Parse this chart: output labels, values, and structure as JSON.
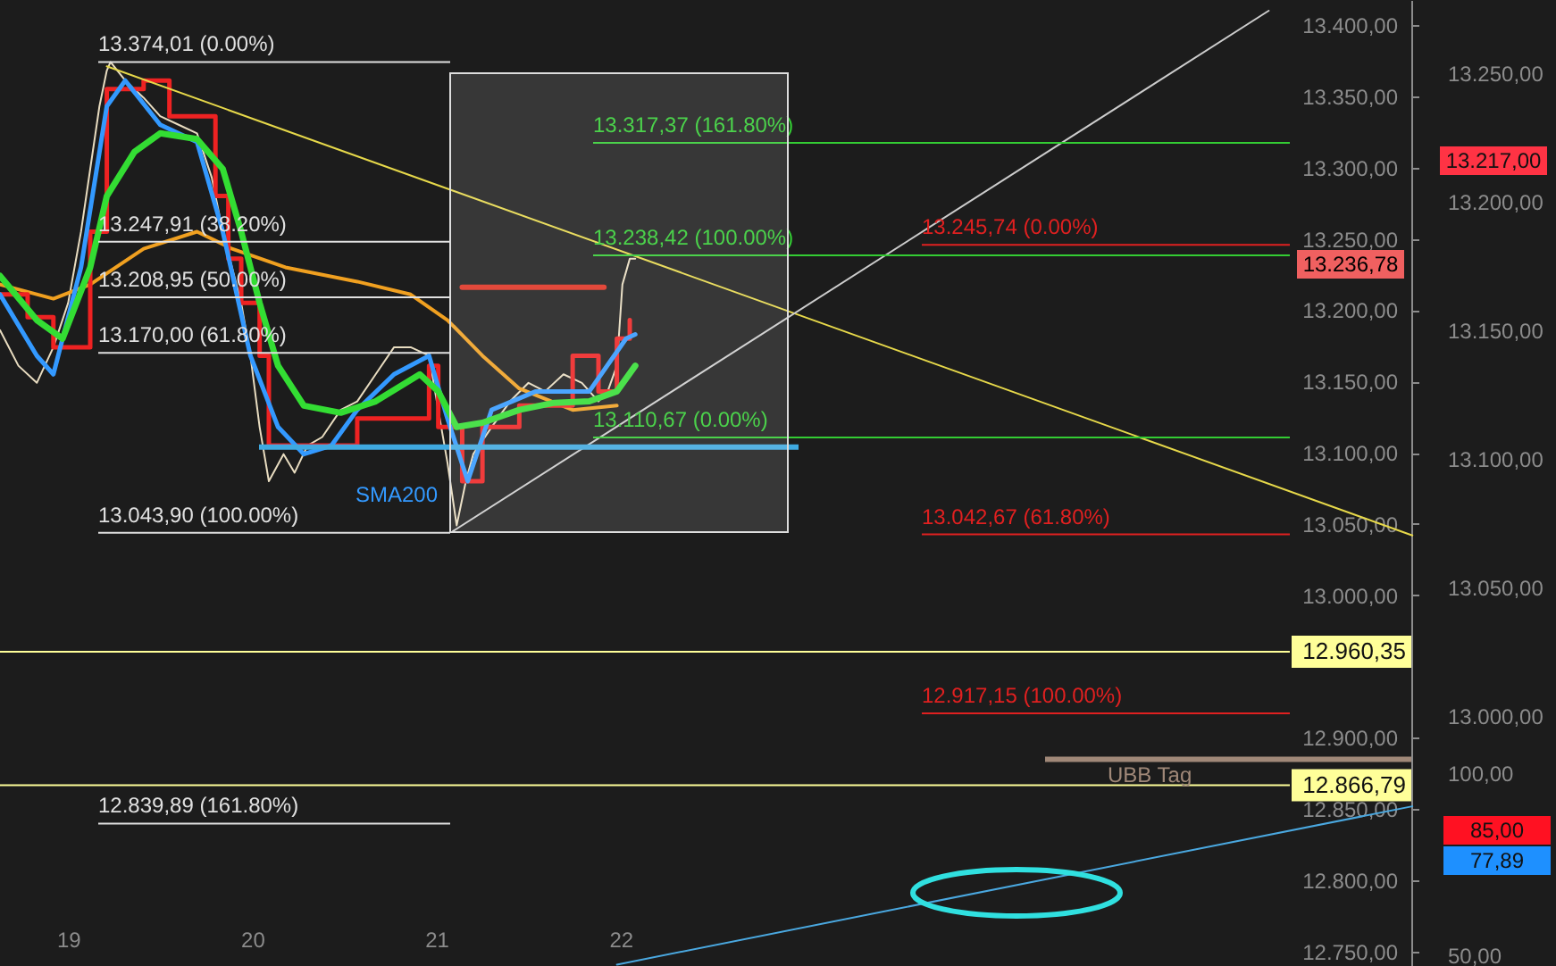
{
  "chart_data": {
    "type": "line",
    "grid": false,
    "xlim": [
      18.63,
      27.08
    ],
    "xticks": [
      19,
      20,
      21,
      22
    ],
    "ylim": [
      12740,
      13417.5
    ],
    "yticks": [
      {
        "value": 12750,
        "label": "12.750,00"
      },
      {
        "value": 12800,
        "label": "12.800,00"
      },
      {
        "value": 12850,
        "label": "12.850,00"
      },
      {
        "value": 12900,
        "label": "12.900,00"
      },
      {
        "value": 13000,
        "label": "13.000,00"
      },
      {
        "value": 13050,
        "label": "13.050,00"
      },
      {
        "value": 13100,
        "label": "13.100,00"
      },
      {
        "value": 13150,
        "label": "13.150,00"
      },
      {
        "value": 13200,
        "label": "13.200,00"
      },
      {
        "value": 13250,
        "label": "13.250,00"
      },
      {
        "value": 13300,
        "label": "13.300,00"
      },
      {
        "value": 13350,
        "label": "13.350,00"
      },
      {
        "value": 13400,
        "label": "13.400,00"
      }
    ],
    "y2lim": [
      12903,
      13278.5
    ],
    "y2ticks": [
      {
        "value": 13000,
        "label": "13.000,00"
      },
      {
        "value": 13050,
        "label": "13.050,00"
      },
      {
        "value": 13100,
        "label": "13.100,00"
      },
      {
        "value": 13150,
        "label": "13.150,00"
      },
      {
        "value": 13200,
        "label": "13.200,00"
      },
      {
        "value": 13250,
        "label": "13.250,00"
      }
    ],
    "series": [
      {
        "color": "#e8dcc0",
        "x": [
          18.63,
          18.73,
          18.83,
          18.92,
          19.0,
          19.07,
          19.12,
          19.17,
          19.21,
          19.23,
          19.31,
          19.41,
          19.5,
          19.6,
          19.7,
          19.78,
          19.84,
          19.89,
          19.94,
          19.99,
          20.04,
          20.09,
          20.17,
          20.23,
          20.3,
          20.38,
          20.48,
          20.57,
          20.67,
          20.77,
          20.86,
          20.96,
          21.01,
          21.06,
          21.11,
          21.16,
          21.2,
          21.3,
          21.4,
          21.5,
          21.59,
          21.69,
          21.79,
          21.88,
          21.93,
          21.98,
          22.01,
          22.05,
          22.08
        ],
        "values": [
          13186,
          13161,
          13149,
          13174,
          13205,
          13255,
          13299,
          13343,
          13368,
          13374,
          13361,
          13349,
          13336,
          13330,
          13324,
          13293,
          13255,
          13230,
          13205,
          13168,
          13118,
          13080,
          13099,
          13086,
          13105,
          13111,
          13130,
          13136,
          13155,
          13174,
          13174,
          13168,
          13130,
          13093,
          13049,
          13080,
          13099,
          13118,
          13136,
          13149,
          13143,
          13155,
          13149,
          13136,
          13143,
          13161,
          13218,
          13236,
          13236
        ]
      },
      {
        "color": "#f0a020",
        "x": [
          18.63,
          18.92,
          19.12,
          19.41,
          19.7,
          19.89,
          20.18,
          20.57,
          20.86,
          21.06,
          21.25,
          21.45,
          21.74,
          21.98
        ],
        "values": [
          13218,
          13208,
          13218,
          13243,
          13255,
          13243,
          13230,
          13220,
          13211,
          13193,
          13168,
          13145,
          13130,
          13133
        ]
      },
      {
        "type": "step",
        "color": "#ee2222",
        "x": [
          18.63,
          18.78,
          18.92,
          19.12,
          19.21,
          19.41,
          19.55,
          19.75,
          19.8,
          19.87,
          19.94,
          20.04,
          20.09,
          20.23,
          20.43,
          20.57,
          20.96,
          21.01,
          21.14,
          21.25,
          21.45,
          21.74,
          21.88,
          21.98,
          22.05
        ],
        "values": [
          13211,
          13195,
          13174,
          13255,
          13355,
          13361,
          13336,
          13336,
          13280,
          13236,
          13205,
          13168,
          13105,
          13105,
          13105,
          13124,
          13161,
          13118,
          13080,
          13118,
          13133,
          13168,
          13143,
          13180,
          13193
        ]
      },
      {
        "color": "#3399ff",
        "x": [
          18.63,
          18.83,
          18.92,
          19.07,
          19.21,
          19.31,
          19.5,
          19.7,
          19.84,
          19.99,
          20.14,
          20.28,
          20.43,
          20.57,
          20.77,
          20.96,
          21.06,
          21.17,
          21.3,
          21.54,
          21.83,
          22.03,
          22.08
        ],
        "values": [
          13211,
          13168,
          13155,
          13230,
          13343,
          13361,
          13330,
          13318,
          13255,
          13168,
          13118,
          13099,
          13105,
          13130,
          13155,
          13168,
          13124,
          13080,
          13130,
          13143,
          13143,
          13180,
          13183
        ]
      },
      {
        "color": "#33dd33",
        "x": [
          18.63,
          18.83,
          18.97,
          19.12,
          19.21,
          19.36,
          19.5,
          19.7,
          19.84,
          19.94,
          20.04,
          20.14,
          20.28,
          20.48,
          20.67,
          20.91,
          21.01,
          21.11,
          21.25,
          21.45,
          21.64,
          21.83,
          21.98,
          22.08
        ],
        "values": [
          13224,
          13193,
          13180,
          13230,
          13280,
          13311,
          13324,
          13320,
          13299,
          13255,
          13205,
          13161,
          13133,
          13128,
          13136,
          13155,
          13143,
          13118,
          13121,
          13130,
          13135,
          13136,
          13143,
          13161
        ]
      },
      {
        "color": "#e6d84a",
        "x": [
          19.21,
          26.3
        ],
        "values": [
          13371,
          13042
        ]
      },
      {
        "color": "#cccccc",
        "x": [
          21.09,
          25.52
        ],
        "values": [
          13045,
          13410
        ]
      },
      {
        "color": "#4aa8e0",
        "x": [
          21.98,
          26.3
        ],
        "values": [
          12741,
          12852
        ]
      },
      {
        "color": "#e03020",
        "x": [
          21.14,
          21.91
        ],
        "values": [
          13216,
          13216
        ]
      }
    ],
    "ref_lines": [
      {
        "axis": "y",
        "value": 13374.01,
        "label": "13.374,01 (0.00%)",
        "color": "#e0e0e0"
      },
      {
        "axis": "y",
        "value": 13247.91,
        "label": "13.247,91 (38.20%)",
        "color": "#e0e0e0"
      },
      {
        "axis": "y",
        "value": 13208.95,
        "label": "13.208,95 (50.00%)",
        "color": "#e0e0e0"
      },
      {
        "axis": "y",
        "value": 13170.0,
        "label": "13.170,00 (61.80%)",
        "color": "#e0e0e0"
      },
      {
        "axis": "y",
        "value": 13043.9,
        "label": "13.043,90 (100.00%)",
        "color": "#e0e0e0"
      },
      {
        "axis": "y",
        "value": 12839.89,
        "label": "12.839,89 (161.80%)",
        "color": "#e0e0e0"
      },
      {
        "axis": "y",
        "value": 13317.37,
        "label": "13.317,37 (161.80%)",
        "color": "#33cc33"
      },
      {
        "axis": "y",
        "value": 13238.42,
        "label": "13.238,42 (100.00%)",
        "color": "#33cc33"
      },
      {
        "axis": "y",
        "value": 13110.67,
        "label": "13.110,67 (0.00%)",
        "color": "#33cc33"
      },
      {
        "axis": "y",
        "value": 13245.74,
        "label": "13.245,74 (0.00%)",
        "color": "#e02020"
      },
      {
        "axis": "y",
        "value": 13042.67,
        "label": "13.042,67 (61.80%)",
        "color": "#e02020"
      },
      {
        "axis": "y",
        "value": 12917.15,
        "label": "12.917,15 (100.00%)",
        "color": "#e02020"
      },
      {
        "axis": "y",
        "value": 12960.35,
        "label": "12.960,35",
        "color": "#ffff99"
      },
      {
        "axis": "y",
        "value": 12866.79,
        "label": "12.866,79",
        "color": "#ffff99"
      },
      {
        "axis": "y",
        "value": 12885,
        "label": "UBB Tag",
        "color": "#a08878"
      },
      {
        "axis": "y",
        "value": 13104,
        "label": null,
        "color": "#3fa9e0"
      }
    ],
    "annotations": [
      "13.236,78",
      "SMA200",
      "13.217,00",
      "85,00",
      "77,89"
    ],
    "y3lim": [
      47,
      312.3
    ],
    "y3ticks": [
      {
        "value": 50,
        "label": "50,00"
      },
      {
        "value": 100,
        "label": "100,00"
      }
    ]
  }
}
